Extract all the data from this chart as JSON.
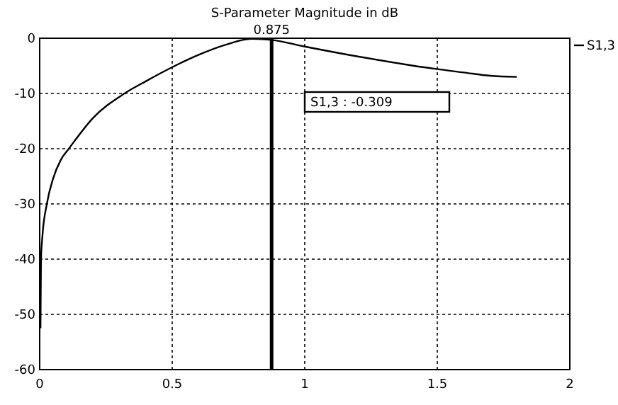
{
  "chart_data": {
    "type": "line",
    "title": "S-Parameter Magnitude in dB",
    "x": [
      0.003,
      0.005,
      0.01,
      0.027,
      0.05,
      0.08,
      0.11,
      0.13,
      0.2,
      0.32,
      0.4,
      0.51,
      0.6,
      0.7,
      0.8,
      0.875,
      1.0,
      1.2,
      1.4,
      1.5,
      1.6,
      1.7,
      1.8
    ],
    "series": [
      {
        "name": "S1,3",
        "color": "#000000",
        "values": [
          -52.5,
          -40,
          -36,
          -30,
          -25.5,
          -22,
          -20,
          -18.7,
          -14.5,
          -10,
          -7.8,
          -5,
          -3,
          -1.2,
          -0.1,
          -0.3,
          -1.5,
          -3.3,
          -4.9,
          -5.6,
          -6.2,
          -6.8,
          -7
        ]
      }
    ],
    "xlim": [
      0,
      2
    ],
    "xticks": [
      0,
      0.5,
      1,
      1.5,
      2
    ],
    "ylim": [
      -60,
      0
    ],
    "yticks": [
      0,
      -10,
      -20,
      -30,
      -40,
      -50,
      -60
    ],
    "grid": true,
    "line_style": "solid",
    "marker": "none",
    "ref_lines": [
      {
        "axis": "x",
        "value": 0.875,
        "label": "0.875",
        "color": "#000000"
      }
    ],
    "annotations": [
      "S1,3 : -0.309"
    ]
  }
}
